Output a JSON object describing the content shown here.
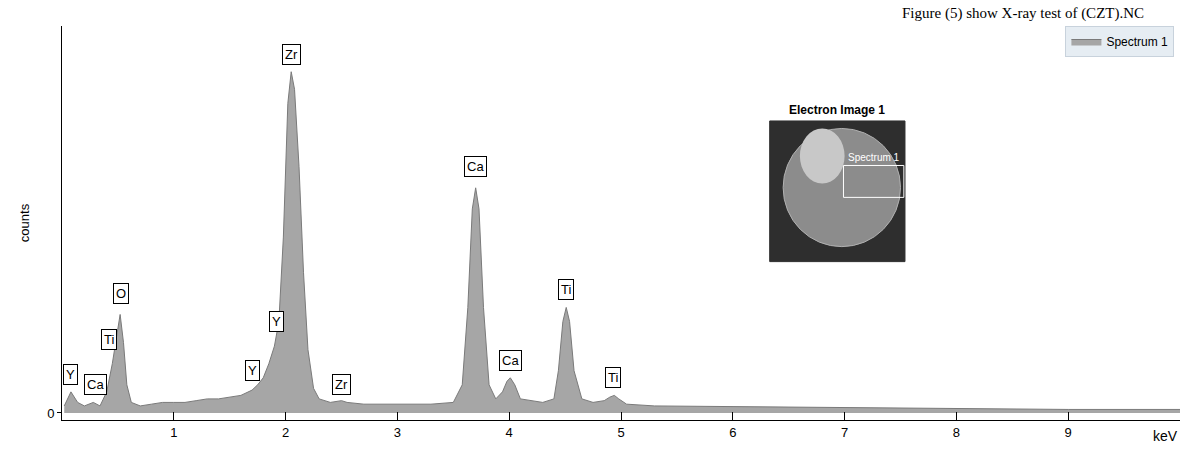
{
  "chart_data": {
    "type": "area",
    "caption": "Figure (5) show X-ray test of (CZT).NC",
    "x_label": "keV",
    "y_label": "counts",
    "xlim": [
      0,
      10
    ],
    "xticks": [
      1,
      2,
      3,
      4,
      5,
      6,
      7,
      8,
      9
    ],
    "ylim": [
      -2,
      110
    ],
    "yticks": [
      0
    ],
    "grid": false,
    "legend": "top-right",
    "series": [
      {
        "name": "Spectrum 1",
        "color": "#a6a6a6",
        "x": [
          0.02,
          0.08,
          0.14,
          0.2,
          0.28,
          0.34,
          0.4,
          0.45,
          0.49,
          0.52,
          0.55,
          0.58,
          0.62,
          0.7,
          0.8,
          0.9,
          1.0,
          1.1,
          1.2,
          1.3,
          1.4,
          1.5,
          1.6,
          1.7,
          1.75,
          1.8,
          1.85,
          1.9,
          1.94,
          1.98,
          2.02,
          2.05,
          2.08,
          2.12,
          2.16,
          2.2,
          2.25,
          2.3,
          2.4,
          2.5,
          2.55,
          2.7,
          3.0,
          3.3,
          3.5,
          3.58,
          3.63,
          3.67,
          3.7,
          3.73,
          3.77,
          3.82,
          3.88,
          3.94,
          3.98,
          4.01,
          4.05,
          4.1,
          4.3,
          4.4,
          4.44,
          4.48,
          4.51,
          4.54,
          4.58,
          4.65,
          4.75,
          4.85,
          4.9,
          4.94,
          4.98,
          5.05,
          5.3,
          6,
          7,
          8,
          9,
          10
        ],
        "values": [
          2,
          6,
          3,
          2,
          3,
          2,
          6,
          14,
          22,
          28,
          20,
          8,
          3,
          2,
          2.5,
          3,
          3,
          3,
          3.5,
          4,
          4,
          4.5,
          5,
          6.5,
          8,
          10,
          14,
          19,
          26,
          50,
          88,
          97,
          92,
          70,
          40,
          18,
          7,
          4,
          3,
          3.5,
          3,
          2.5,
          2.5,
          2.5,
          3,
          8,
          30,
          58,
          64,
          58,
          30,
          8,
          4,
          6,
          9,
          10,
          8,
          4,
          3,
          4,
          12,
          26,
          30,
          26,
          12,
          4,
          3,
          3.5,
          4.5,
          5,
          4,
          2.5,
          2,
          1.8,
          1.5,
          1.2,
          1,
          1
        ]
      }
    ],
    "annotations": [
      {
        "text": "Y",
        "x": 0.08,
        "y": 8
      },
      {
        "text": "Ca",
        "x": 0.3,
        "y": 5
      },
      {
        "text": "Ti",
        "x": 0.42,
        "y": 18
      },
      {
        "text": "O",
        "x": 0.53,
        "y": 31
      },
      {
        "text": "Y",
        "x": 1.7,
        "y": 9
      },
      {
        "text": "Y",
        "x": 1.92,
        "y": 23
      },
      {
        "text": "Zr",
        "x": 2.05,
        "y": 99
      },
      {
        "text": "Zr",
        "x": 2.5,
        "y": 5
      },
      {
        "text": "Ca",
        "x": 3.7,
        "y": 67
      },
      {
        "text": "Ca",
        "x": 4.01,
        "y": 12
      },
      {
        "text": "Ti",
        "x": 4.51,
        "y": 32
      },
      {
        "text": "Ti",
        "x": 4.93,
        "y": 7
      }
    ],
    "inset": {
      "title": "Electron Image 1",
      "label": "Spectrum 1"
    }
  }
}
